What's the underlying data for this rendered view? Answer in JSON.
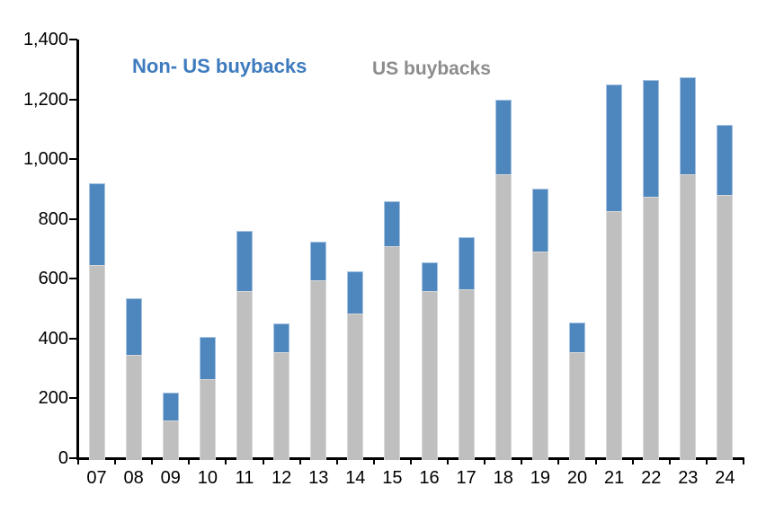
{
  "legend": {
    "non_us_label": "Non- US buybacks",
    "us_label": "US buybacks"
  },
  "colors": {
    "non_us_fill": "#4E86BE",
    "non_us_border": "#A6C3E1",
    "us_fill": "#BFBFBF",
    "us_border": "#D8D8D8",
    "legend_non_us_text": "#3E7BBE",
    "legend_us_text": "#8C8C8C",
    "axis": "#000000"
  },
  "chart_data": {
    "type": "bar",
    "stacked": true,
    "title": "",
    "xlabel": "",
    "ylabel": "",
    "categories": [
      "07",
      "08",
      "09",
      "10",
      "11",
      "12",
      "13",
      "14",
      "15",
      "16",
      "17",
      "18",
      "19",
      "20",
      "21",
      "22",
      "23",
      "24"
    ],
    "series": [
      {
        "name": "US buybacks",
        "color_key": "us",
        "values": [
          645,
          345,
          125,
          265,
          560,
          355,
          595,
          485,
          710,
          560,
          565,
          950,
          690,
          355,
          825,
          875,
          950,
          880
        ]
      },
      {
        "name": "Non- US buybacks",
        "color_key": "non_us",
        "values": [
          275,
          190,
          95,
          140,
          200,
          95,
          130,
          140,
          150,
          95,
          175,
          250,
          210,
          100,
          425,
          390,
          325,
          235
        ]
      }
    ],
    "totals": [
      920,
      535,
      220,
      405,
      760,
      450,
      725,
      625,
      860,
      655,
      740,
      1200,
      900,
      455,
      1250,
      1265,
      1275,
      1115
    ],
    "ylim": [
      0,
      1400
    ],
    "ytick_step": 200,
    "ytick_labels": [
      "0",
      "200",
      "400",
      "600",
      "800",
      "1,000",
      "1,200",
      "1,400"
    ],
    "grid": false,
    "legend_position": "top-inside"
  }
}
